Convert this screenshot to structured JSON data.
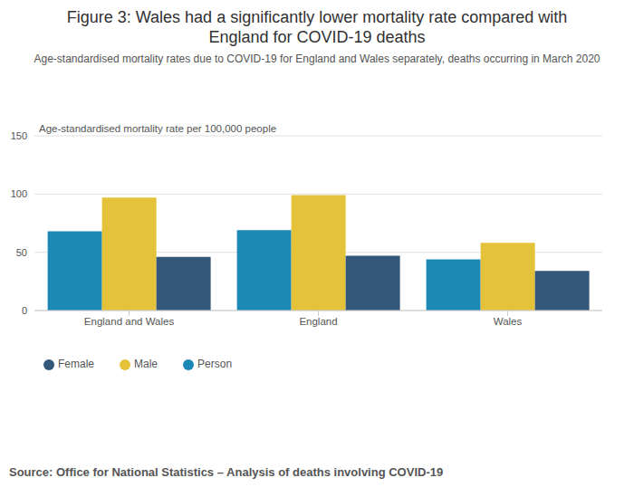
{
  "chart_data": {
    "type": "bar",
    "title": "Figure 3: Wales had a significantly lower mortality rate compared with England for COVID-19 deaths",
    "subtitle": "Age-standardised mortality rates due to COVID-19 for England and Wales separately, deaths occurring in March 2020",
    "ylabel": "Age-standardised mortality rate per 100,000 people",
    "source": "Source: Office for National Statistics – Analysis of deaths involving COVID-19",
    "categories": [
      "England and Wales",
      "England",
      "Wales"
    ],
    "series": [
      {
        "name": "Person",
        "color": "#1b88b5",
        "values": [
          68,
          69,
          44
        ]
      },
      {
        "name": "Male",
        "color": "#e4c23a",
        "values": [
          97,
          99,
          58
        ]
      },
      {
        "name": "Female",
        "color": "#33587a",
        "values": [
          46,
          47,
          34
        ]
      }
    ],
    "ylim": [
      0,
      150
    ],
    "yticks": [
      0,
      50,
      100,
      150
    ],
    "grid": true,
    "legend": "bottom left"
  }
}
